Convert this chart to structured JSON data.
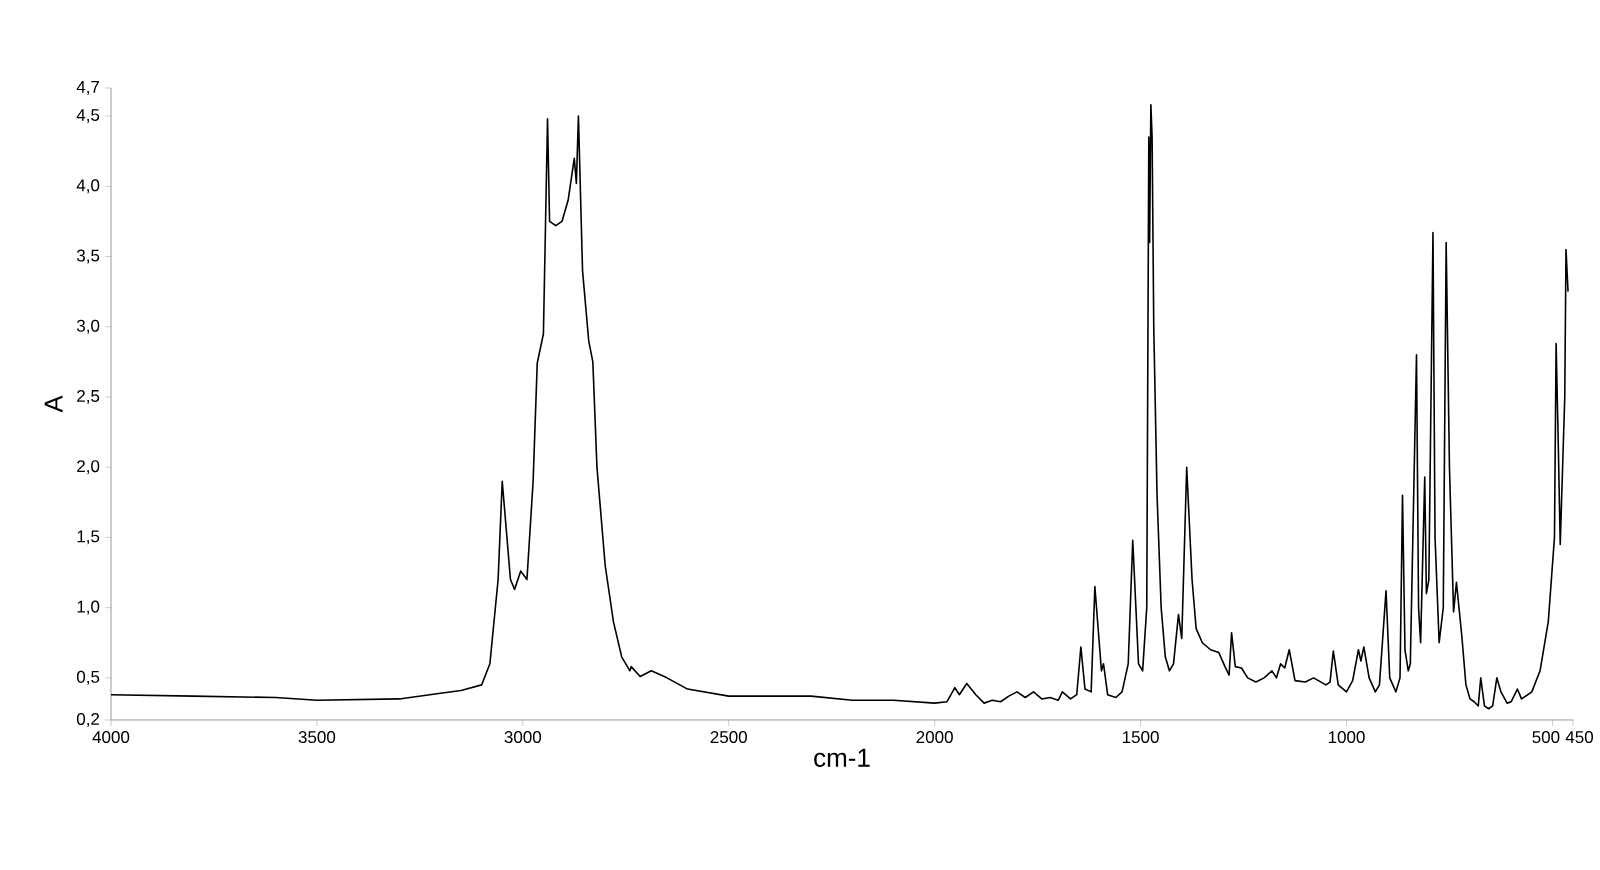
{
  "chart_data": {
    "type": "line",
    "xlabel": "cm-1",
    "ylabel": "A",
    "x": [
      4000,
      3800,
      3600,
      3500,
      3300,
      3200,
      3150,
      3100,
      3080,
      3060,
      3050,
      3030,
      3020,
      3005,
      2990,
      2975,
      2965,
      2950,
      2940,
      2935,
      2920,
      2905,
      2890,
      2875,
      2870,
      2865,
      2855,
      2840,
      2830,
      2820,
      2800,
      2780,
      2760,
      2740,
      2737,
      2715,
      2688,
      2650,
      2600,
      2500,
      2400,
      2300,
      2200,
      2100,
      2000,
      1970,
      1951,
      1940,
      1922,
      1900,
      1880,
      1860,
      1840,
      1820,
      1800,
      1780,
      1760,
      1740,
      1720,
      1700,
      1690,
      1670,
      1655,
      1645,
      1635,
      1620,
      1611,
      1595,
      1590,
      1580,
      1560,
      1545,
      1530,
      1519,
      1505,
      1495,
      1485,
      1480,
      1478,
      1475,
      1472,
      1468,
      1460,
      1450,
      1440,
      1430,
      1420,
      1408,
      1400,
      1388,
      1375,
      1365,
      1350,
      1330,
      1310,
      1295,
      1285,
      1279,
      1270,
      1255,
      1240,
      1220,
      1200,
      1181,
      1170,
      1160,
      1150,
      1139,
      1125,
      1100,
      1080,
      1050,
      1040,
      1032,
      1020,
      1000,
      985,
      971,
      965,
      958,
      945,
      930,
      920,
      904,
      895,
      880,
      870,
      864,
      858,
      850,
      845,
      830,
      825,
      820,
      810,
      806,
      800,
      790,
      785,
      775,
      765,
      758,
      750,
      740,
      733,
      720,
      710,
      700,
      690,
      680,
      674,
      665,
      655,
      645,
      635,
      625,
      610,
      600,
      585,
      575,
      550,
      530,
      510,
      495,
      491,
      486,
      481,
      470,
      467,
      462
    ],
    "values": [
      0.38,
      0.37,
      0.36,
      0.34,
      0.35,
      0.39,
      0.41,
      0.45,
      0.6,
      1.2,
      1.9,
      1.2,
      1.13,
      1.26,
      1.2,
      1.9,
      2.74,
      2.95,
      4.48,
      3.75,
      3.72,
      3.75,
      3.9,
      4.2,
      4.02,
      4.5,
      3.4,
      2.9,
      2.75,
      2.0,
      1.3,
      0.9,
      0.65,
      0.55,
      0.58,
      0.51,
      0.55,
      0.5,
      0.42,
      0.37,
      0.37,
      0.37,
      0.34,
      0.34,
      0.32,
      0.33,
      0.43,
      0.38,
      0.46,
      0.38,
      0.32,
      0.34,
      0.33,
      0.37,
      0.4,
      0.36,
      0.4,
      0.35,
      0.36,
      0.34,
      0.4,
      0.35,
      0.38,
      0.72,
      0.42,
      0.4,
      1.15,
      0.55,
      0.6,
      0.38,
      0.36,
      0.4,
      0.6,
      1.48,
      0.6,
      0.55,
      1.0,
      4.35,
      3.6,
      4.58,
      4.35,
      3.0,
      1.8,
      1.0,
      0.65,
      0.55,
      0.6,
      0.95,
      0.78,
      2.0,
      1.2,
      0.85,
      0.75,
      0.7,
      0.68,
      0.58,
      0.52,
      0.82,
      0.58,
      0.57,
      0.5,
      0.47,
      0.5,
      0.55,
      0.5,
      0.6,
      0.57,
      0.7,
      0.48,
      0.47,
      0.5,
      0.45,
      0.47,
      0.69,
      0.45,
      0.4,
      0.48,
      0.7,
      0.62,
      0.72,
      0.5,
      0.4,
      0.45,
      1.12,
      0.5,
      0.4,
      0.5,
      1.8,
      0.7,
      0.55,
      0.6,
      2.8,
      1.0,
      0.75,
      1.93,
      1.1,
      1.2,
      3.67,
      1.5,
      0.75,
      1.0,
      3.6,
      2.0,
      0.97,
      1.18,
      0.8,
      0.45,
      0.35,
      0.33,
      0.3,
      0.5,
      0.3,
      0.28,
      0.3,
      0.5,
      0.4,
      0.32,
      0.33,
      0.42,
      0.35,
      0.4,
      0.55,
      0.9,
      1.5,
      2.88,
      2.2,
      1.45,
      2.5,
      3.55,
      3.25
    ],
    "color": "#000000",
    "xlim": [
      4000,
      450
    ],
    "ylim": [
      0.2,
      4.7
    ],
    "xticks": [
      4000,
      3500,
      3000,
      2500,
      2000,
      1500,
      1000,
      500,
      450
    ],
    "yticks": [
      {
        "value": 0.2,
        "label": "0,2"
      },
      {
        "value": 0.5,
        "label": "0,5"
      },
      {
        "value": 1.0,
        "label": "1,0"
      },
      {
        "value": 1.5,
        "label": "1,5"
      },
      {
        "value": 2.0,
        "label": "2,0"
      },
      {
        "value": 2.5,
        "label": "2,5"
      },
      {
        "value": 3.0,
        "label": "3,0"
      },
      {
        "value": 3.5,
        "label": "3,5"
      },
      {
        "value": 4.0,
        "label": "4,0"
      },
      {
        "value": 4.5,
        "label": "4,5"
      },
      {
        "value": 4.7,
        "label": "4,7"
      }
    ]
  }
}
